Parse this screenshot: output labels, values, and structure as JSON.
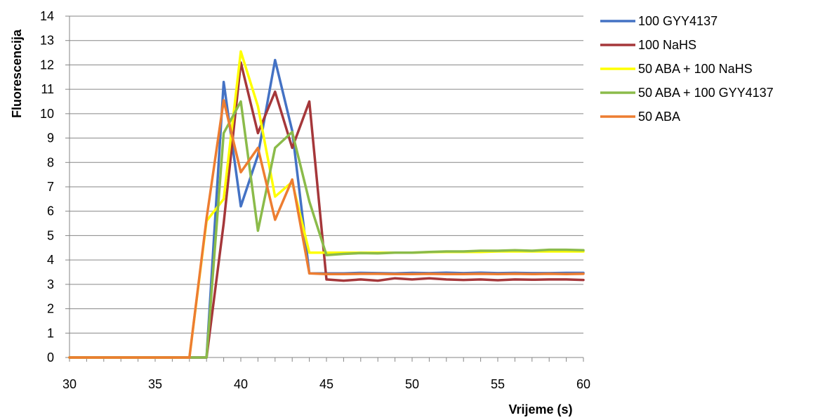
{
  "chart_data": {
    "type": "line",
    "title": "",
    "xlabel": "Vrijeme (s)",
    "ylabel": "Fluorescencija",
    "xlim": [
      30,
      60
    ],
    "ylim": [
      0,
      14
    ],
    "x_ticks": [
      30,
      35,
      40,
      45,
      50,
      55,
      60
    ],
    "y_ticks": [
      0,
      1,
      2,
      3,
      4,
      5,
      6,
      7,
      8,
      9,
      10,
      11,
      12,
      13,
      14
    ],
    "grid": "horizontal",
    "legend_position": "right",
    "x": [
      30,
      31,
      32,
      33,
      34,
      35,
      36,
      37,
      38,
      39,
      40,
      41,
      42,
      43,
      44,
      45,
      46,
      47,
      48,
      49,
      50,
      51,
      52,
      53,
      54,
      55,
      56,
      57,
      58,
      59,
      60
    ],
    "series": [
      {
        "name": "100 GYY4137",
        "color": "#4472C4",
        "values": [
          0,
          0,
          0,
          0,
          0,
          0,
          0,
          0,
          0,
          11.3,
          6.2,
          8.3,
          12.2,
          9.3,
          3.45,
          3.45,
          3.45,
          3.47,
          3.46,
          3.45,
          3.47,
          3.46,
          3.48,
          3.46,
          3.48,
          3.46,
          3.47,
          3.46,
          3.46,
          3.47,
          3.47
        ]
      },
      {
        "name": "100 NaHS",
        "color": "#A5373A",
        "values": [
          0,
          0,
          0,
          0,
          0,
          0,
          0,
          0,
          0,
          5.5,
          12.1,
          9.2,
          10.9,
          8.6,
          10.5,
          3.2,
          3.15,
          3.2,
          3.15,
          3.25,
          3.2,
          3.25,
          3.2,
          3.18,
          3.2,
          3.17,
          3.2,
          3.19,
          3.2,
          3.2,
          3.18
        ]
      },
      {
        "name": "50 ABA + 100 NaHS",
        "color": "#FFFF00",
        "values": [
          0,
          0,
          0,
          0,
          0,
          0,
          0,
          0,
          5.6,
          6.5,
          12.55,
          10.3,
          6.6,
          7.2,
          4.3,
          4.3,
          4.3,
          4.3,
          4.3,
          4.3,
          4.3,
          4.32,
          4.33,
          4.33,
          4.33,
          4.35,
          4.35,
          4.35,
          4.35,
          4.35,
          4.35
        ]
      },
      {
        "name": "50 ABA + 100 GYY4137",
        "color": "#8BBB4A",
        "values": [
          0,
          0,
          0,
          0,
          0,
          0,
          0,
          0,
          0,
          9.2,
          10.5,
          5.2,
          8.6,
          9.25,
          6.4,
          4.2,
          4.25,
          4.28,
          4.27,
          4.3,
          4.3,
          4.33,
          4.35,
          4.35,
          4.38,
          4.38,
          4.4,
          4.38,
          4.42,
          4.42,
          4.4
        ]
      },
      {
        "name": "50 ABA",
        "color": "#ED7D31",
        "values": [
          0,
          0,
          0,
          0,
          0,
          0,
          0,
          0,
          5.7,
          10.55,
          7.6,
          8.6,
          5.65,
          7.3,
          3.45,
          3.42,
          3.42,
          3.43,
          3.43,
          3.42,
          3.42,
          3.43,
          3.42,
          3.42,
          3.43,
          3.42,
          3.43,
          3.42,
          3.43,
          3.42,
          3.43
        ]
      }
    ]
  }
}
